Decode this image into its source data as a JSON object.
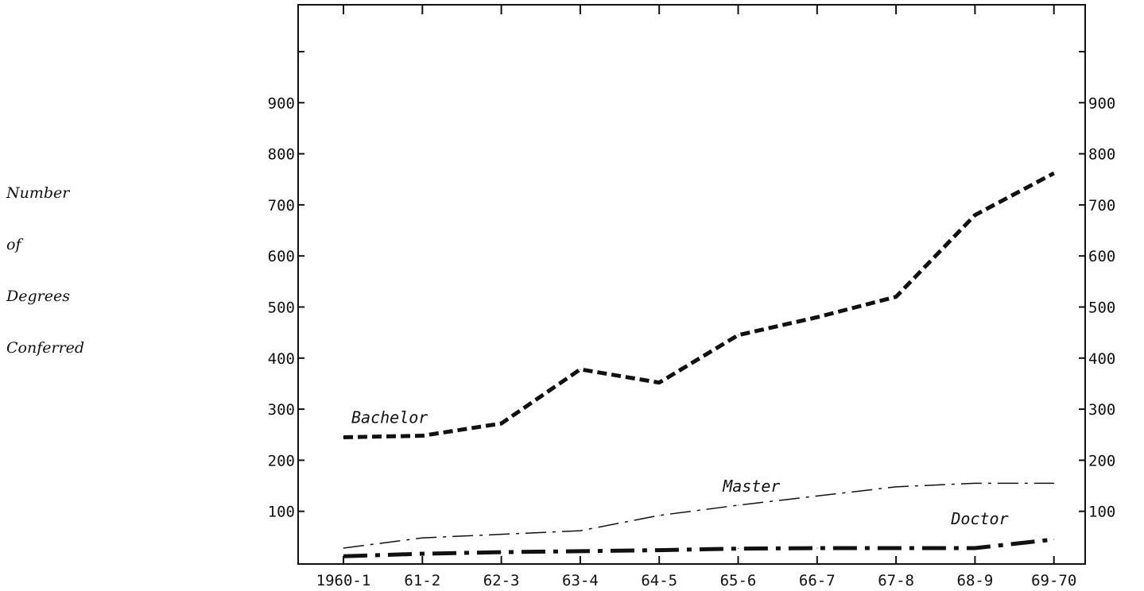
{
  "chart_data": {
    "type": "line",
    "ylabel_lines": [
      "Number",
      "of",
      "Degrees",
      "Conferred"
    ],
    "categories": [
      "1960-1",
      "61-2",
      "62-3",
      "63-4",
      "64-5",
      "65-6",
      "66-7",
      "67-8",
      "68-9",
      "69-70"
    ],
    "yticks": [
      100,
      200,
      300,
      400,
      500,
      600,
      700,
      800,
      900
    ],
    "ylim": [
      0,
      1000
    ],
    "series": [
      {
        "name": "Bachelor",
        "values": [
          245,
          248,
          272,
          378,
          352,
          445,
          480,
          520,
          680,
          762
        ]
      },
      {
        "name": "Master",
        "values": [
          28,
          48,
          55,
          62,
          92,
          112,
          130,
          148,
          155,
          155
        ]
      },
      {
        "name": "Doctor",
        "values": [
          12,
          17,
          20,
          22,
          24,
          27,
          28,
          28,
          28,
          45
        ]
      }
    ],
    "grid": false,
    "legend": "inline labels"
  }
}
